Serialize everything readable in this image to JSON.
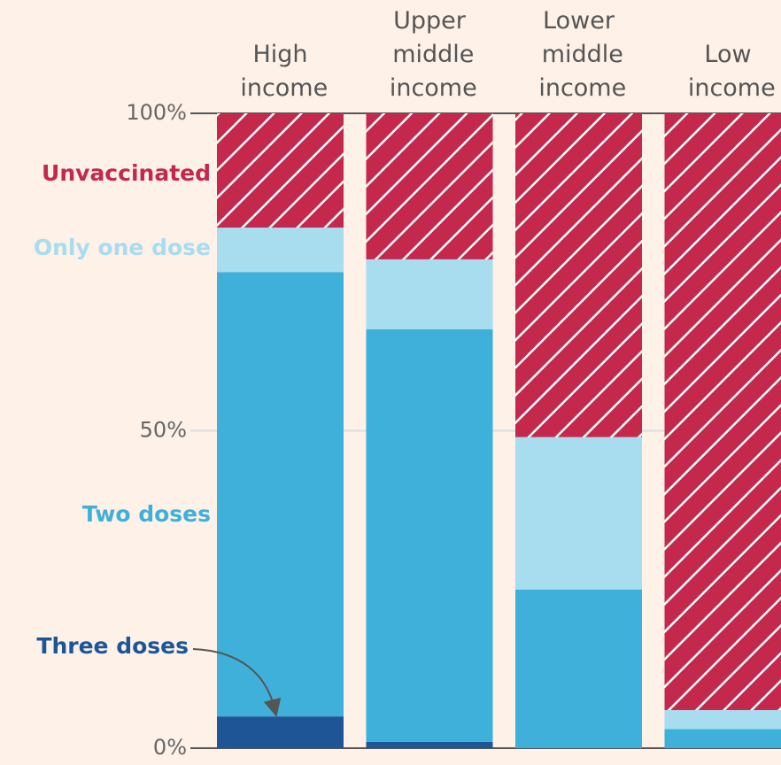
{
  "chart_data": {
    "type": "stacked_bar",
    "categories": [
      "High income",
      "Upper middle income",
      "Lower middle income",
      "Low income"
    ],
    "series": [
      {
        "name": "Three doses",
        "color": "#1e5597",
        "values": [
          5,
          1,
          0,
          0
        ]
      },
      {
        "name": "Two doses",
        "color": "#3eb0da",
        "values": [
          70,
          65,
          25,
          3
        ]
      },
      {
        "name": "Only one dose",
        "color": "#a8dcef",
        "values": [
          7,
          11,
          24,
          3
        ]
      },
      {
        "name": "Unvaccinated",
        "color": "#c4284c",
        "values": [
          18,
          23,
          51,
          94
        ],
        "hatched": true
      }
    ],
    "ylim": [
      0,
      100
    ],
    "yticks": [
      {
        "value": 0,
        "label": "0%"
      },
      {
        "value": 50,
        "label": "50%"
      },
      {
        "value": 100,
        "label": "100%"
      }
    ]
  }
}
